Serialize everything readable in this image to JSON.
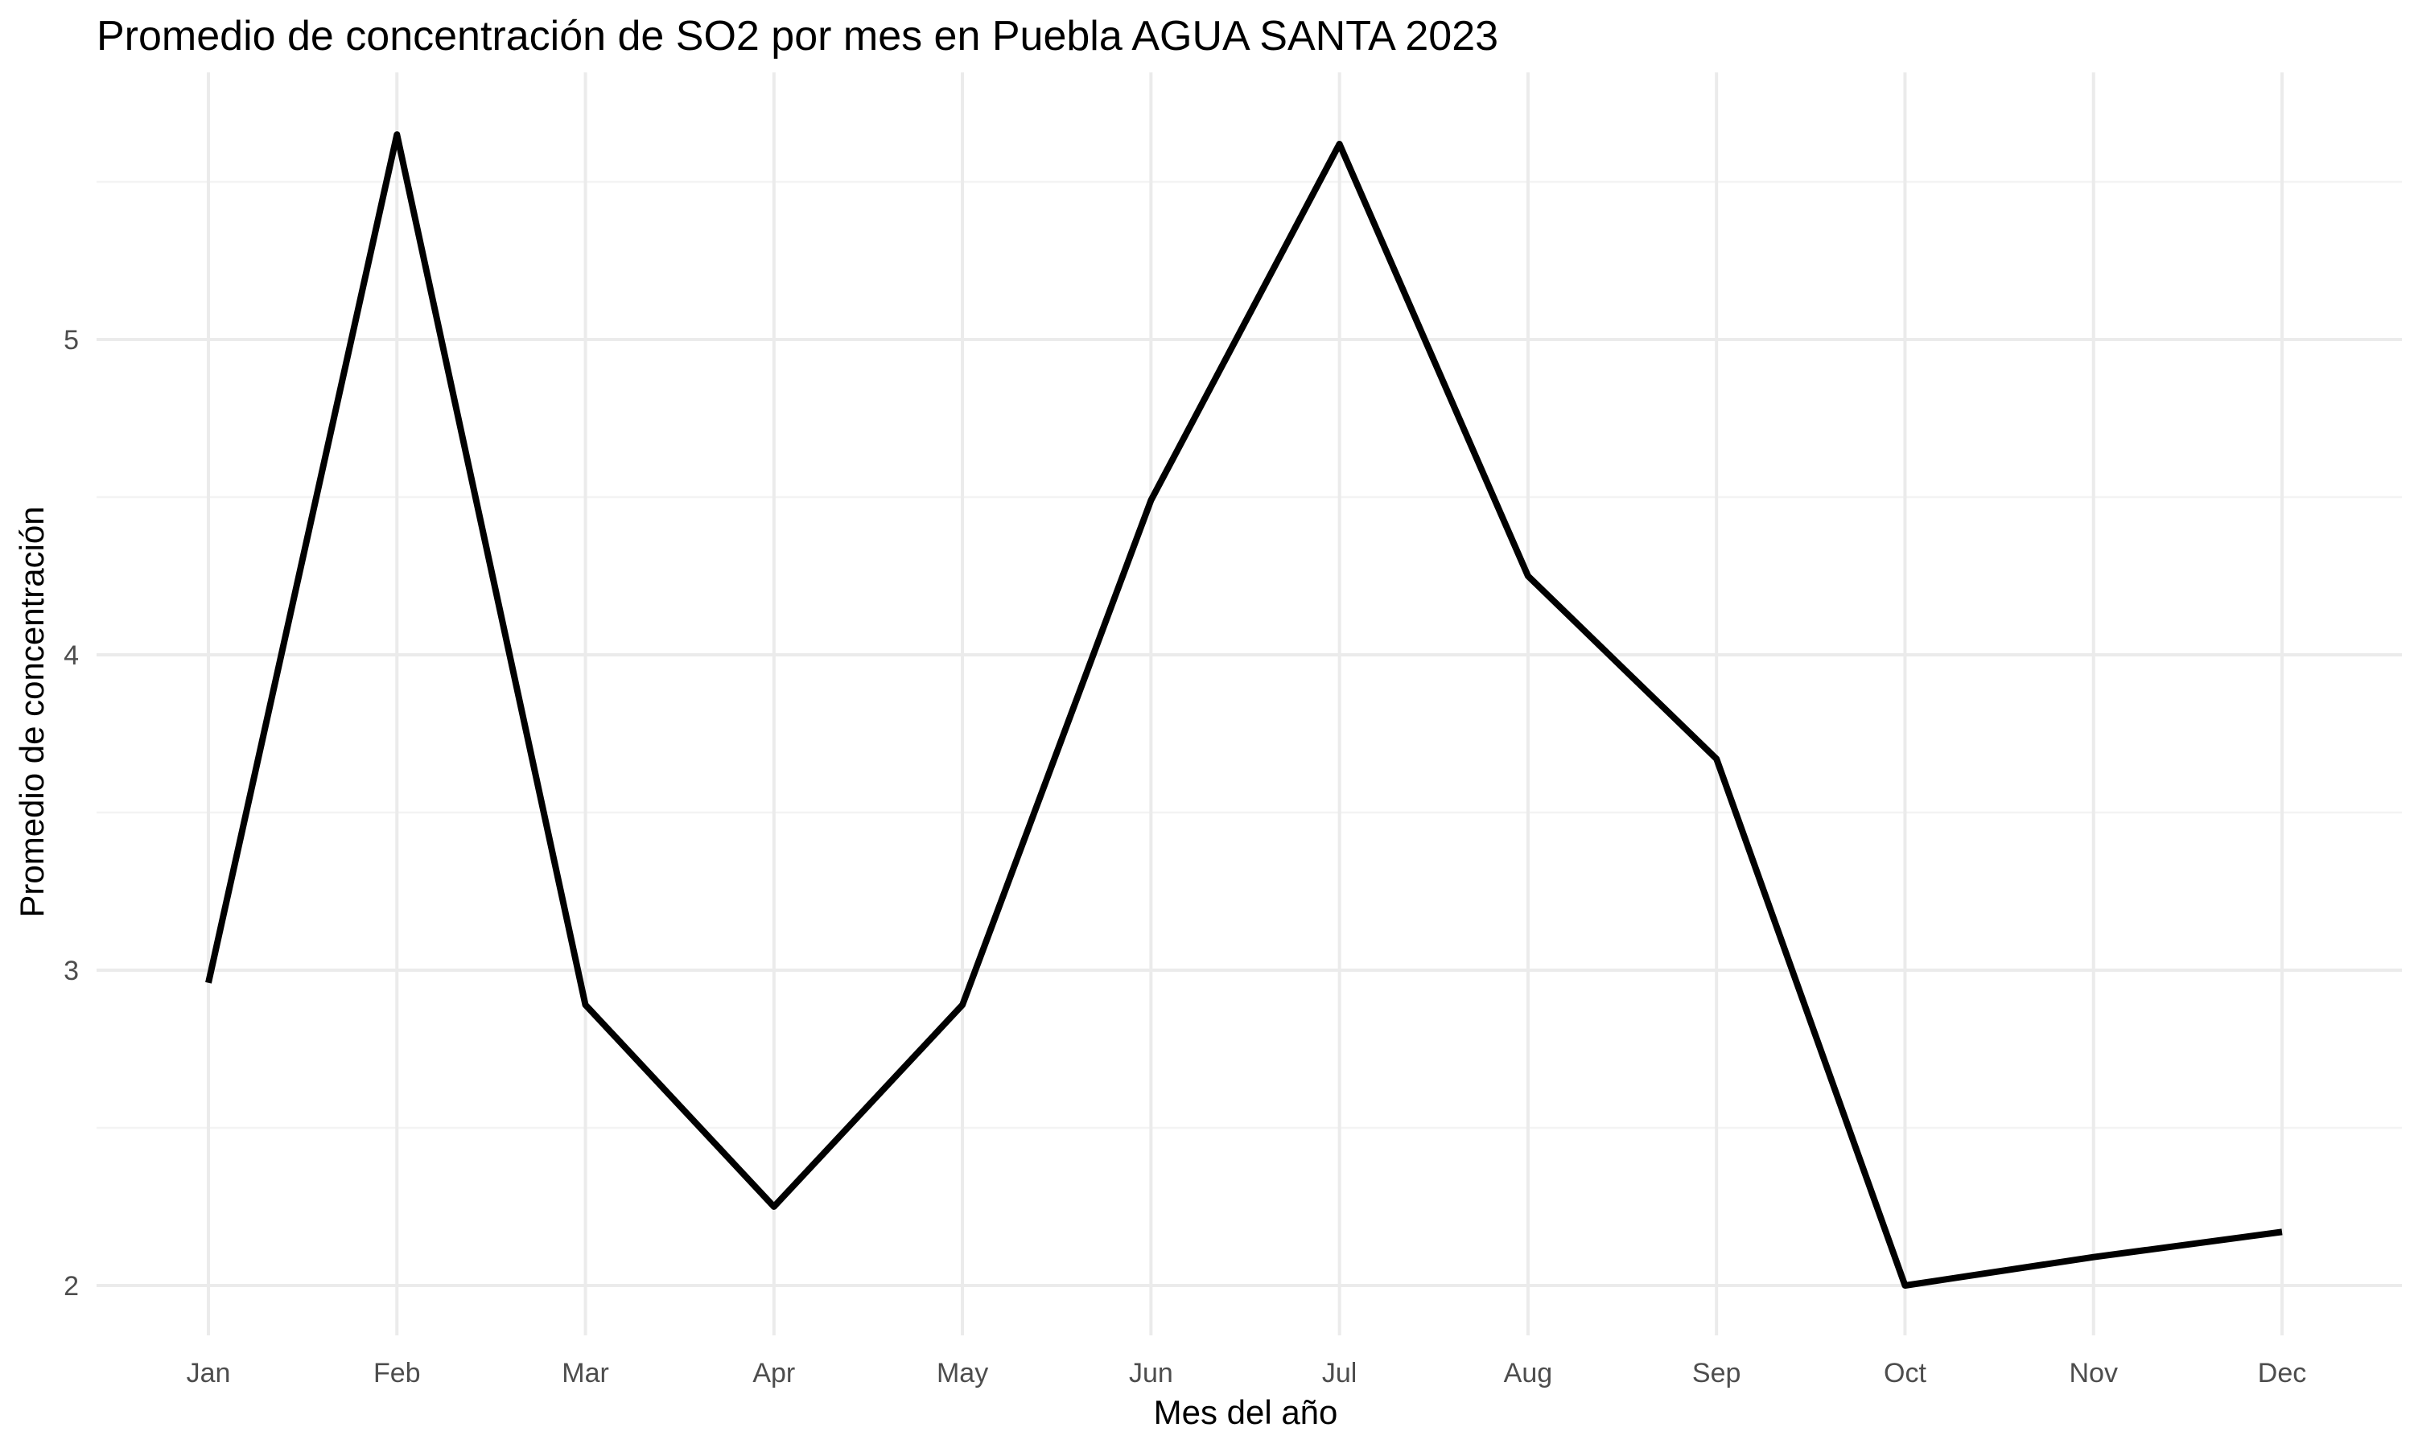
{
  "chart_data": {
    "type": "line",
    "title": "Promedio de concentración de SO2 por mes en Puebla AGUA SANTA 2023",
    "xlabel": "Mes del año",
    "ylabel": "Promedio de concentración",
    "categories": [
      "Jan",
      "Feb",
      "Mar",
      "Apr",
      "May",
      "Jun",
      "Jul",
      "Aug",
      "Sep",
      "Oct",
      "Nov",
      "Dec"
    ],
    "series": [
      {
        "values": [
          2.96,
          5.65,
          2.89,
          2.25,
          2.89,
          4.49,
          5.62,
          4.25,
          3.67,
          2.0,
          2.09,
          2.17
        ],
        "color": "#000000"
      }
    ],
    "ylim": [
      1.8,
      5.8
    ],
    "yticks": [
      2,
      3,
      4,
      5
    ],
    "yticks_minor": [
      2.5,
      3.5,
      4.5,
      5.5
    ],
    "grid": true,
    "legend": "none"
  }
}
